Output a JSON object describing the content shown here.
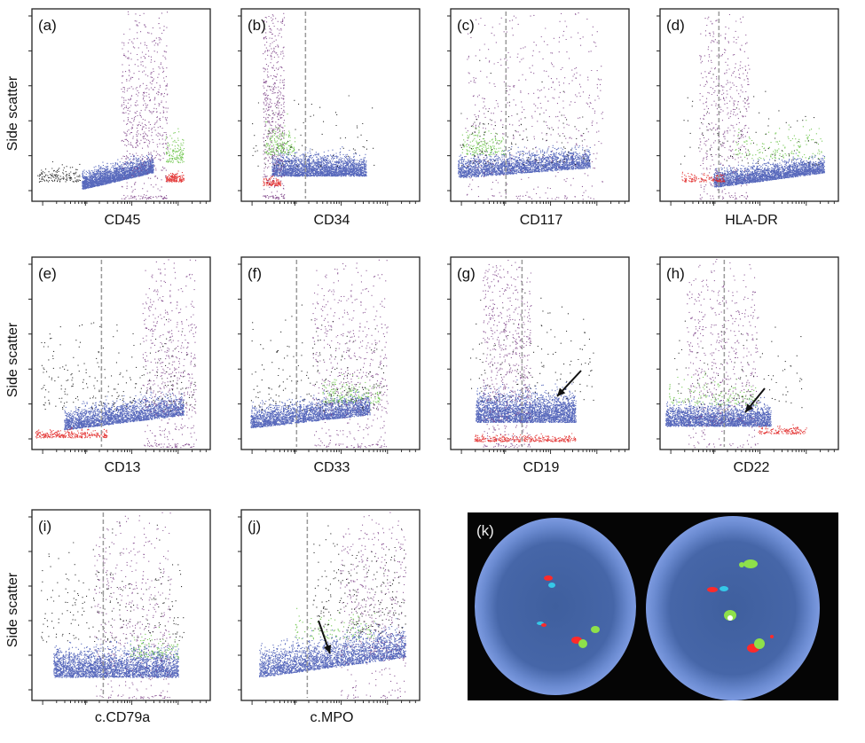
{
  "figure": {
    "y_axis_label": "Side scatter",
    "colors": {
      "frame": "#222222",
      "gate_line": "#9a9a9a",
      "population_blue": "#3b4fb0",
      "population_purple": "#7b3f86",
      "population_green": "#5fbf3a",
      "population_red": "#e0201e",
      "debris_black": "#111111",
      "fish_background": "#050505",
      "nucleus": "#5f80c4",
      "fish_red": "#ff2a2a",
      "fish_green": "#8ee04a",
      "fish_aqua": "#35c8e8"
    }
  },
  "chart_data": [
    {
      "type": "scatter",
      "panel": "(a)",
      "xlabel": "CD45",
      "ylabel": "Side scatter",
      "x_scale": "log",
      "gate_line": false
    },
    {
      "type": "scatter",
      "panel": "(b)",
      "xlabel": "CD34",
      "ylabel": "",
      "x_scale": "log",
      "gate_line": true
    },
    {
      "type": "scatter",
      "panel": "(c)",
      "xlabel": "CD117",
      "ylabel": "",
      "x_scale": "log",
      "gate_line": true
    },
    {
      "type": "scatter",
      "panel": "(d)",
      "xlabel": "HLA-DR",
      "ylabel": "",
      "x_scale": "log",
      "gate_line": true
    },
    {
      "type": "scatter",
      "panel": "(e)",
      "xlabel": "CD13",
      "ylabel": "Side scatter",
      "x_scale": "log",
      "gate_line": true
    },
    {
      "type": "scatter",
      "panel": "(f)",
      "xlabel": "CD33",
      "ylabel": "",
      "x_scale": "log",
      "gate_line": true
    },
    {
      "type": "scatter",
      "panel": "(g)",
      "xlabel": "CD19",
      "ylabel": "",
      "x_scale": "log",
      "gate_line": true,
      "arrow": true
    },
    {
      "type": "scatter",
      "panel": "(h)",
      "xlabel": "CD22",
      "ylabel": "",
      "x_scale": "log",
      "gate_line": true,
      "arrow": true
    },
    {
      "type": "scatter",
      "panel": "(i)",
      "xlabel": "c.CD79a",
      "ylabel": "Side scatter",
      "x_scale": "log",
      "gate_line": true
    },
    {
      "type": "scatter",
      "panel": "(j)",
      "xlabel": "c.MPO",
      "ylabel": "",
      "x_scale": "log",
      "gate_line": true,
      "arrow": true
    }
  ],
  "fish_panel": {
    "label": "(k)",
    "nuclei_count": 2
  }
}
